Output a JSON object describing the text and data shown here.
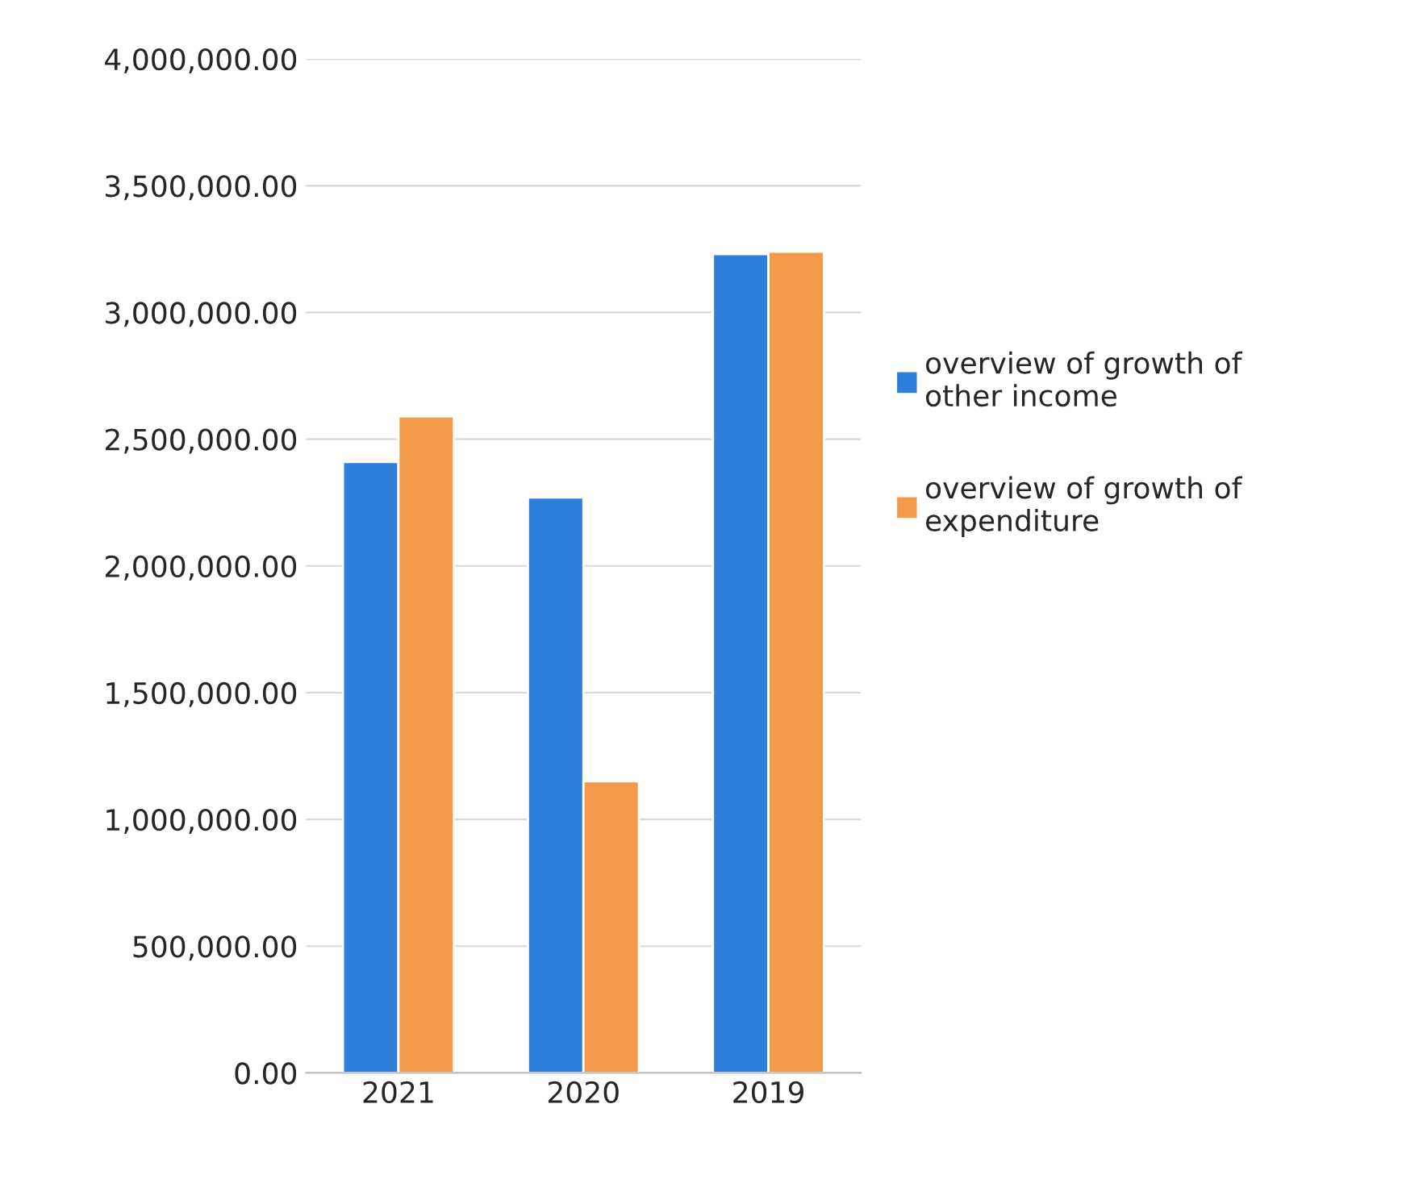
{
  "chart_data": {
    "type": "bar",
    "categories": [
      "2021",
      "2020",
      "2019"
    ],
    "series": [
      {
        "name": "overview of growth of other income",
        "color": "#2e7fd9",
        "values": [
          2410000,
          2270000,
          3230000
        ]
      },
      {
        "name": "overview of growth of expenditure",
        "color": "#f39a4a",
        "values": [
          2590000,
          1150000,
          3240000
        ]
      }
    ],
    "ylim": [
      0,
      4000000
    ],
    "yticks": [
      {
        "value": 0,
        "label": "0.00"
      },
      {
        "value": 500000,
        "label": "500,000.00"
      },
      {
        "value": 1000000,
        "label": "1,000,000.00"
      },
      {
        "value": 1500000,
        "label": "1,500,000.00"
      },
      {
        "value": 2000000,
        "label": "2,000,000.00"
      },
      {
        "value": 2500000,
        "label": "2,500,000.00"
      },
      {
        "value": 3000000,
        "label": "3,000,000.00"
      },
      {
        "value": 3500000,
        "label": "3,500,000.00"
      },
      {
        "value": 4000000,
        "label": "4,000,000.00"
      }
    ],
    "grid": "y",
    "legend": "right"
  }
}
